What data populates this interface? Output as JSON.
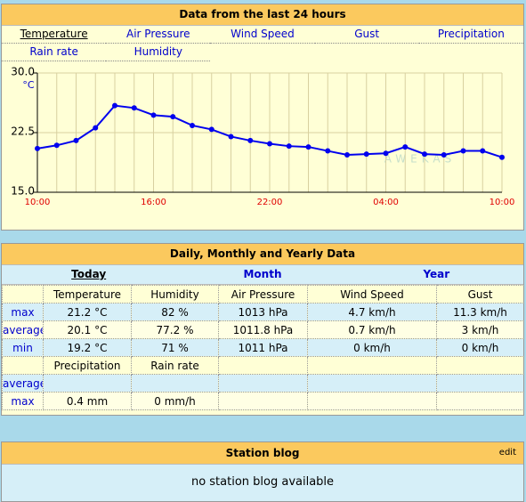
{
  "history": {
    "title": "Data from the last 24 hours",
    "tabs": [
      "Temperature",
      "Air Pressure",
      "Wind Speed",
      "Gust",
      "Precipitation",
      "Rain rate",
      "Humidity"
    ],
    "selected": 0
  },
  "chart_data": {
    "type": "line",
    "y_label": "°C",
    "watermark": "AWEKAS",
    "categories": [
      "10:00",
      null,
      null,
      null,
      null,
      null,
      "16:00",
      null,
      null,
      null,
      null,
      null,
      "22:00",
      null,
      null,
      null,
      null,
      null,
      "04:00",
      null,
      null,
      null,
      null,
      null,
      "10:00"
    ],
    "series": [
      {
        "color": "#0000ee",
        "values": [
          20.5,
          20.9,
          21.5,
          23.1,
          25.9,
          25.6,
          24.7,
          24.5,
          23.4,
          22.9,
          22.0,
          21.5,
          21.1,
          20.8,
          20.7,
          20.2,
          19.7,
          19.8,
          19.9,
          20.7,
          19.8,
          19.7,
          20.2,
          20.2,
          19.4
        ]
      }
    ],
    "ylim": [
      15,
      30
    ],
    "yticks": [
      {
        "value": 15,
        "label": "15.0"
      },
      {
        "value": 22.5,
        "label": "22.5"
      },
      {
        "value": 30,
        "label": "30.0"
      }
    ],
    "grid": true,
    "x_label_color": "#e00000"
  },
  "summary": {
    "title": "Daily, Monthly and Yearly Data",
    "periods": [
      "Today",
      "Month",
      "Year"
    ],
    "selected": 0,
    "table1": {
      "columns": [
        "Temperature",
        "Humidity",
        "Air Pressure",
        "Wind Speed",
        "Gust"
      ],
      "rows": [
        {
          "label": "max",
          "cells": [
            "21.2 °C",
            "82 %",
            "1013 hPa",
            "4.7 km/h",
            "11.3 km/h"
          ]
        },
        {
          "label": "average",
          "cells": [
            "20.1 °C",
            "77.2 %",
            "1011.8 hPa",
            "0.7 km/h",
            "3 km/h"
          ]
        },
        {
          "label": "min",
          "cells": [
            "19.2 °C",
            "71 %",
            "1011 hPa",
            "0 km/h",
            "0 km/h"
          ]
        }
      ]
    },
    "table2": {
      "columns": [
        "Precipitation",
        "Rain rate"
      ],
      "rows": [
        {
          "label": "average",
          "cells": []
        },
        {
          "label": "max",
          "cells": [
            "0.4 mm",
            "0 mm/h"
          ]
        }
      ]
    }
  },
  "blog": {
    "title": "Station blog",
    "edit": "edit",
    "message": "no station blog available"
  }
}
